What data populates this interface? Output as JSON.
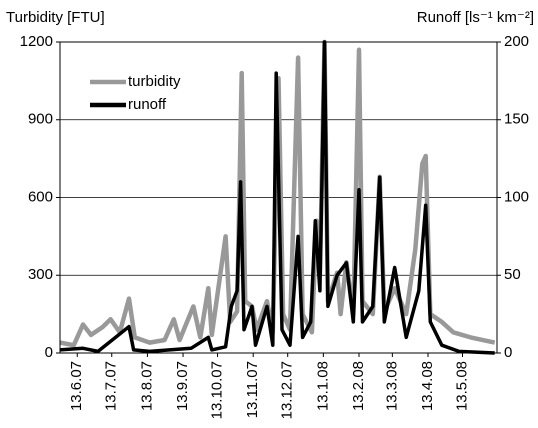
{
  "chart_data": {
    "type": "line",
    "y_label": "Turbidity [FTU]",
    "y2_label": "Runoff [ls⁻¹ km⁻²]",
    "xlim": [
      "29.5.07",
      "12.6.08"
    ],
    "xticks": [
      "13.6.07",
      "13.7.07",
      "13.8.07",
      "13.9.07",
      "13.10.07",
      "13.11.07",
      "13.12.07",
      "13.1.08",
      "13.2.08",
      "13.3.08",
      "13.4.08",
      "13.5.08"
    ],
    "ylim": [
      0,
      1200
    ],
    "yticks": [
      0,
      300,
      600,
      900,
      1200
    ],
    "y2lim": [
      0,
      200
    ],
    "y2ticks": [
      0,
      50,
      100,
      150,
      200
    ],
    "grid": true,
    "legend": "upper left",
    "series": [
      {
        "name": "turbidity",
        "color": "#999999",
        "x": [
          "29.5.07",
          "10.6.07",
          "18.6.07",
          "25.6.07",
          "5.7.07",
          "12.7.07",
          "20.7.07",
          "28.7.07",
          "2.8.07",
          "15.8.07",
          "28.8.07",
          "5.9.07",
          "10.9.07",
          "22.9.07",
          "28.9.07",
          "5.10.07",
          "8.10.07",
          "20.10.07",
          "24.10.07",
          "30.10.07",
          "3.11.07",
          "6.11.07",
          "12.11.07",
          "16.11.07",
          "25.11.07",
          "30.11.07",
          "5.12.07",
          "9.12.07",
          "15.12.07",
          "22.12.07",
          "26.12.07",
          "3.1.08",
          "7.1.08",
          "10.1.08",
          "14.1.08",
          "17.1.08",
          "25.1.08",
          "28.1.08",
          "2.2.08",
          "8.2.08",
          "13.2.08",
          "16.2.08",
          "25.2.08",
          "2.3.08",
          "6.3.08",
          "15.3.08",
          "25.3.08",
          "2.4.08",
          "8.4.08",
          "11.4.08",
          "15.4.08",
          "25.4.08",
          "5.5.08",
          "20.5.08",
          "10.6.08"
        ],
        "values": [
          40,
          30,
          110,
          70,
          100,
          130,
          80,
          210,
          60,
          40,
          50,
          130,
          50,
          180,
          60,
          250,
          70,
          450,
          120,
          160,
          1080,
          200,
          180,
          90,
          200,
          80,
          1060,
          150,
          90,
          1140,
          150,
          80,
          510,
          300,
          1200,
          200,
          310,
          150,
          350,
          150,
          1170,
          200,
          150,
          680,
          160,
          250,
          150,
          400,
          730,
          760,
          150,
          120,
          80,
          60,
          40
        ]
      },
      {
        "name": "runoff",
        "color": "#000000",
        "axis": "y2",
        "x": [
          "29.5.07",
          "18.6.07",
          "1.7.07",
          "28.7.07",
          "1.8.07",
          "15.8.07",
          "20.9.07",
          "5.10.07",
          "8.10.07",
          "20.10.07",
          "25.10.07",
          "30.10.07",
          "2.11.07",
          "5.11.07",
          "12.11.07",
          "15.11.07",
          "25.11.07",
          "30.11.07",
          "3.12.07",
          "8.12.07",
          "15.12.07",
          "22.12.07",
          "26.12.07",
          "2.1.08",
          "6.1.08",
          "10.1.08",
          "14.1.08",
          "17.1.08",
          "25.1.08",
          "2.2.08",
          "8.2.08",
          "13.2.08",
          "16.2.08",
          "25.2.08",
          "2.3.08",
          "6.3.08",
          "15.3.08",
          "25.3.08",
          "5.4.08",
          "11.4.08",
          "15.4.08",
          "25.4.08",
          "10.5.08",
          "10.6.08"
        ],
        "values": [
          2,
          3,
          1,
          17,
          2,
          1,
          3,
          10,
          2,
          4,
          30,
          40,
          110,
          15,
          30,
          5,
          30,
          5,
          180,
          15,
          5,
          75,
          10,
          20,
          85,
          40,
          200,
          30,
          50,
          58,
          20,
          105,
          20,
          30,
          113,
          20,
          55,
          10,
          40,
          95,
          20,
          5,
          1,
          0
        ]
      }
    ]
  }
}
